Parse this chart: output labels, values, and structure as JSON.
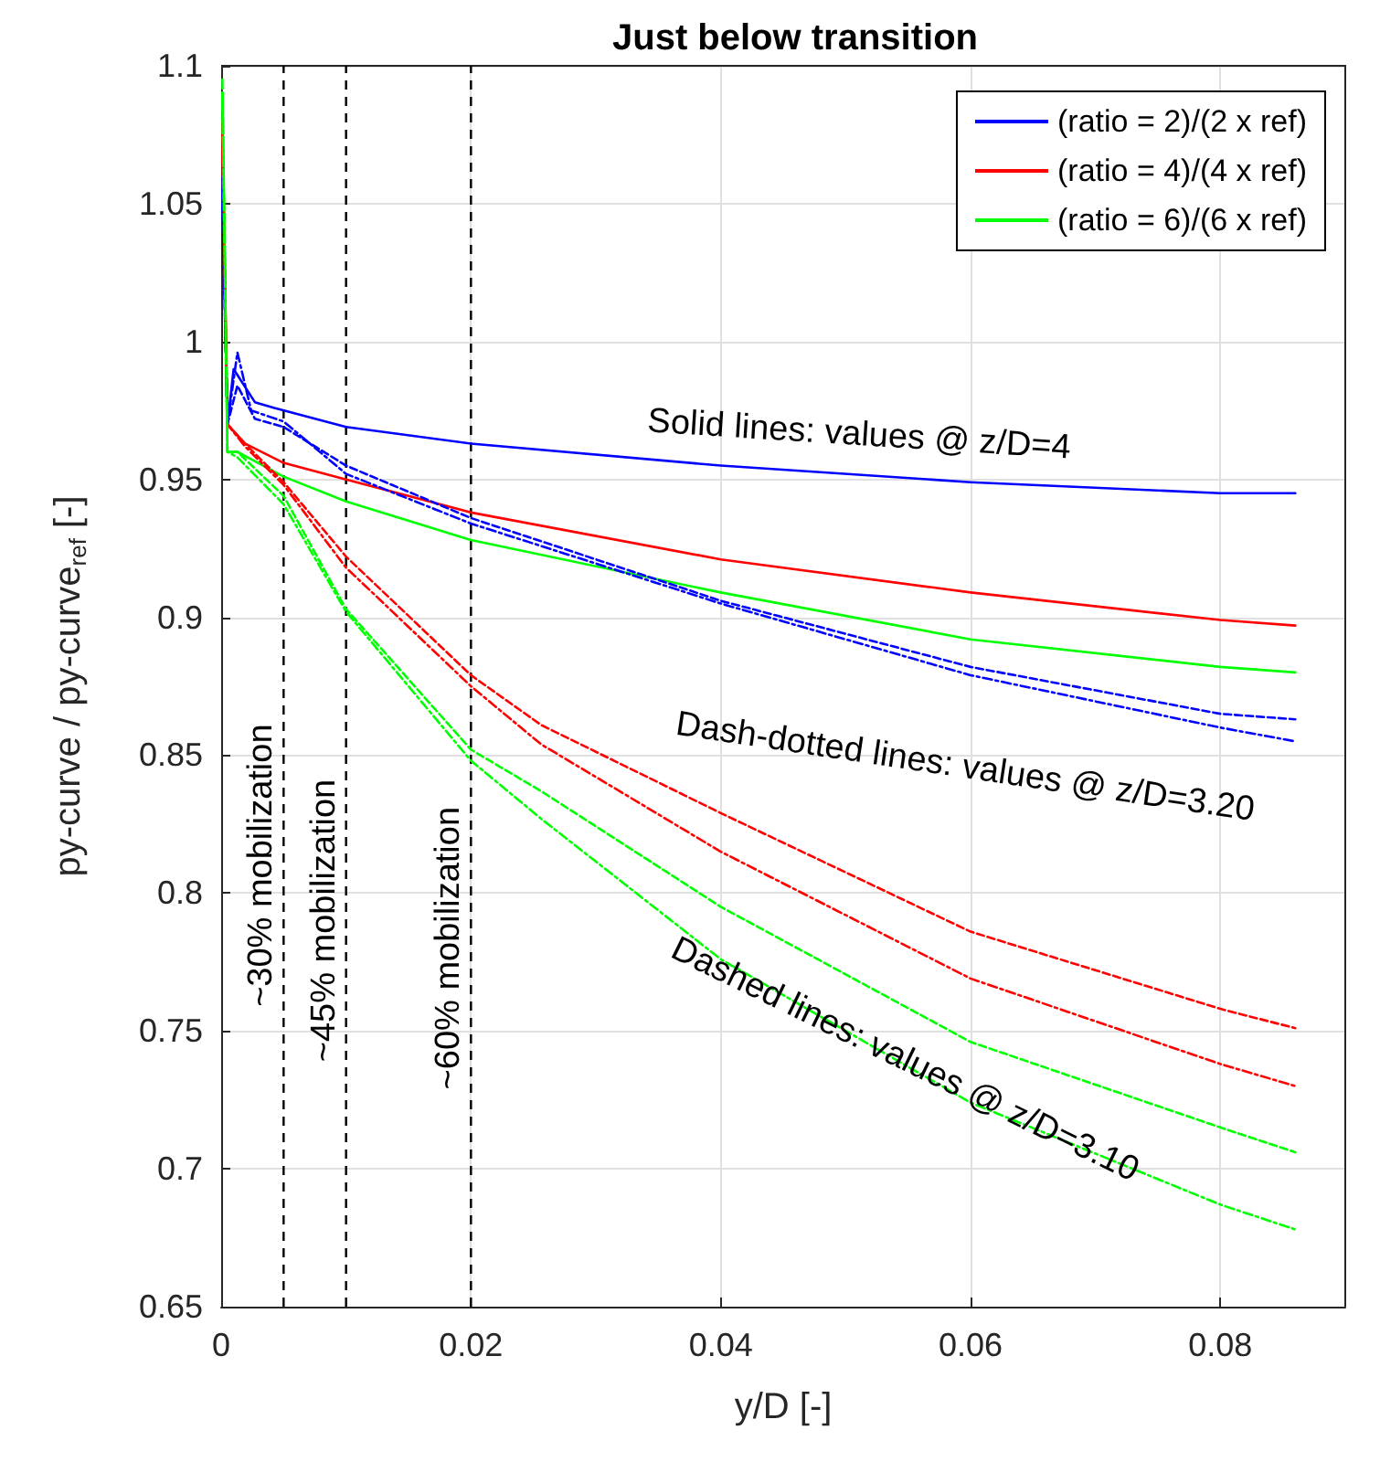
{
  "chart_data": {
    "type": "line",
    "title": "Just below transition",
    "xlabel": "y/D [-]",
    "ylabel": "py-curve / py-curve$_{ref}$ [-]",
    "xlim": [
      0,
      0.09
    ],
    "xticks": [
      0,
      0.02,
      0.04,
      0.06,
      0.08
    ],
    "ylim": [
      0.65,
      1.1
    ],
    "yticks": [
      0.65,
      0.7,
      0.75,
      0.8,
      0.85,
      0.9,
      0.95,
      1,
      1.05,
      1.1
    ],
    "grid": true,
    "legend": "top right",
    "marker": "none",
    "series": [
      {
        "name": "(ratio = 2)/(2 x ref)",
        "color": "#0000ff",
        "line_style": "solid",
        "x": [
          0.0001,
          0.0005,
          0.001,
          0.0027,
          0.0042,
          0.01,
          0.02,
          0.04,
          0.06,
          0.08,
          0.086
        ],
        "values": [
          1.06,
          0.97,
          0.99,
          0.978,
          0.976,
          0.969,
          0.963,
          0.955,
          0.949,
          0.945,
          0.945
        ]
      },
      {
        "name": "(ratio = 4)/(4 x ref)",
        "color": "#ff0000",
        "line_style": "solid",
        "x": [
          0.0001,
          0.0005,
          0.0019,
          0.005,
          0.01,
          0.02,
          0.04,
          0.06,
          0.08,
          0.086
        ],
        "values": [
          1.08,
          0.97,
          0.963,
          0.956,
          0.95,
          0.938,
          0.921,
          0.909,
          0.899,
          0.897
        ]
      },
      {
        "name": "(ratio = 6)/(6 x ref)",
        "color": "#00ff00",
        "line_style": "solid",
        "x": [
          0.0001,
          0.0005,
          0.0013,
          0.005,
          0.01,
          0.02,
          0.04,
          0.06,
          0.08,
          0.086
        ],
        "values": [
          1.09,
          0.96,
          0.96,
          0.951,
          0.942,
          0.928,
          0.909,
          0.892,
          0.882,
          0.88
        ]
      },
      {
        "color": "#0000ff",
        "line_style": "dashed",
        "x": [
          0.0001,
          0.0005,
          0.0013,
          0.0027,
          0.005,
          0.01,
          0.02,
          0.04,
          0.06,
          0.08,
          0.086
        ],
        "values": [
          1.05,
          0.97,
          0.984,
          0.972,
          0.969,
          0.955,
          0.936,
          0.906,
          0.882,
          0.865,
          0.863
        ]
      },
      {
        "color": "#0000ff",
        "line_style": "dotted",
        "x": [
          0.0001,
          0.0005,
          0.0013,
          0.0024,
          0.005,
          0.01,
          0.02,
          0.04,
          0.06,
          0.08,
          0.086
        ],
        "values": [
          1.055,
          0.97,
          0.996,
          0.975,
          0.971,
          0.952,
          0.934,
          0.905,
          0.879,
          0.86,
          0.855
        ]
      },
      {
        "color": "#ff0000",
        "line_style": "dashed",
        "x": [
          0.0001,
          0.0005,
          0.0019,
          0.005,
          0.01,
          0.02,
          0.0256,
          0.04,
          0.06,
          0.08,
          0.086
        ],
        "values": [
          1.07,
          0.97,
          0.963,
          0.949,
          0.922,
          0.879,
          0.861,
          0.829,
          0.786,
          0.758,
          0.751
        ]
      },
      {
        "color": "#ff0000",
        "line_style": "dotted",
        "x": [
          0.0001,
          0.0005,
          0.0019,
          0.005,
          0.01,
          0.02,
          0.0256,
          0.04,
          0.06,
          0.08,
          0.086
        ],
        "values": [
          1.075,
          0.97,
          0.962,
          0.948,
          0.918,
          0.875,
          0.854,
          0.815,
          0.769,
          0.738,
          0.73
        ]
      },
      {
        "color": "#00ff00",
        "line_style": "dashed",
        "x": [
          0.0001,
          0.0005,
          0.0013,
          0.005,
          0.01,
          0.02,
          0.0256,
          0.04,
          0.06,
          0.08,
          0.086
        ],
        "values": [
          1.09,
          0.96,
          0.96,
          0.944,
          0.903,
          0.852,
          0.837,
          0.795,
          0.746,
          0.715,
          0.706
        ]
      },
      {
        "color": "#00ff00",
        "line_style": "dotted",
        "x": [
          0.0001,
          0.0005,
          0.0013,
          0.005,
          0.01,
          0.02,
          0.0256,
          0.04,
          0.06,
          0.08,
          0.086
        ],
        "values": [
          1.095,
          0.96,
          0.958,
          0.941,
          0.902,
          0.848,
          0.827,
          0.776,
          0.724,
          0.687,
          0.678
        ]
      }
    ],
    "ref_lines": [
      {
        "axis": "x",
        "value": 0.005,
        "label": "~30% mobilization",
        "color": "#000000",
        "line_style": "dashed"
      },
      {
        "axis": "x",
        "value": 0.01,
        "label": "~45% mobilization",
        "color": "#000000",
        "line_style": "dashed"
      },
      {
        "axis": "x",
        "value": 0.02,
        "label": "~60% mobilization",
        "color": "#000000",
        "line_style": "dashed"
      }
    ],
    "annotations": [
      "Solid lines: values @ z/D=4",
      "Dash-dotted lines: values @ z/D=3.20",
      "Dashed lines: values @ z/D=3.10"
    ]
  }
}
